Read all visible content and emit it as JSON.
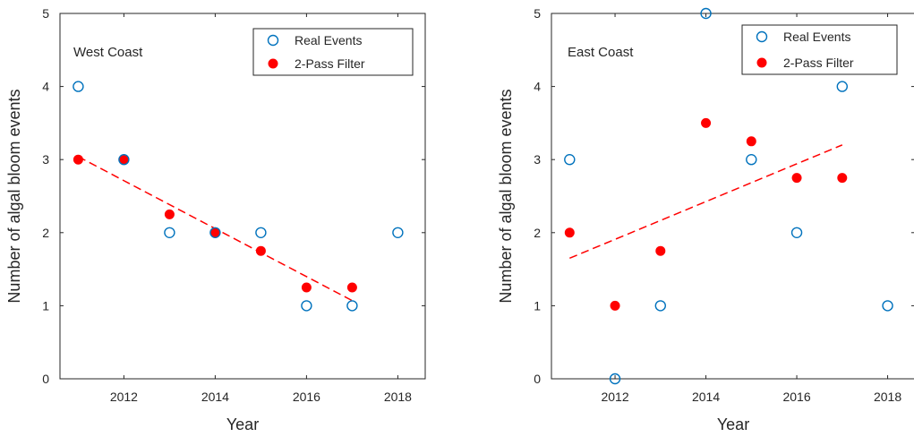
{
  "chart_data": [
    {
      "type": "scatter",
      "title": "",
      "annotation": "West Coast",
      "xlabel": "Year",
      "ylabel": "Number of algal bloom events",
      "xlim": [
        2010.6,
        2018.6
      ],
      "ylim": [
        0,
        5
      ],
      "xticks": [
        2012,
        2014,
        2016,
        2018
      ],
      "yticks": [
        0,
        1,
        2,
        3,
        4,
        5
      ],
      "legend_position": "top-right",
      "series": [
        {
          "name": "Real Events",
          "marker": "open-circle",
          "color": "#0072BD",
          "points": [
            [
              2011,
              4
            ],
            [
              2012,
              3
            ],
            [
              2013,
              2
            ],
            [
              2014,
              2
            ],
            [
              2015,
              2
            ],
            [
              2016,
              1
            ],
            [
              2017,
              1
            ],
            [
              2018,
              2
            ]
          ]
        },
        {
          "name": "2-Pass Filter",
          "marker": "filled-circle",
          "color": "#FF0000",
          "points": [
            [
              2011,
              3
            ],
            [
              2012,
              3
            ],
            [
              2013,
              2.25
            ],
            [
              2014,
              2
            ],
            [
              2015,
              1.75
            ],
            [
              2016,
              1.25
            ],
            [
              2017,
              1.25
            ]
          ]
        }
      ],
      "trendline": {
        "style": "dashed",
        "color": "#FF0000",
        "points": [
          [
            2011,
            3.04
          ],
          [
            2017,
            1.07
          ]
        ]
      }
    },
    {
      "type": "scatter",
      "title": "",
      "annotation": "East Coast",
      "xlabel": "Year",
      "ylabel": "Number of algal bloom events",
      "xlim": [
        2010.6,
        2018.6
      ],
      "ylim": [
        0,
        5
      ],
      "xticks": [
        2012,
        2014,
        2016,
        2018
      ],
      "yticks": [
        0,
        1,
        2,
        3,
        4,
        5
      ],
      "legend_position": "top-right",
      "series": [
        {
          "name": "Real Events",
          "marker": "open-circle",
          "color": "#0072BD",
          "points": [
            [
              2011,
              3
            ],
            [
              2012,
              0
            ],
            [
              2013,
              1
            ],
            [
              2014,
              5
            ],
            [
              2015,
              3
            ],
            [
              2016,
              2
            ],
            [
              2017,
              4
            ],
            [
              2018,
              1
            ]
          ]
        },
        {
          "name": "2-Pass Filter",
          "marker": "filled-circle",
          "color": "#FF0000",
          "points": [
            [
              2011,
              2
            ],
            [
              2012,
              1
            ],
            [
              2013,
              1.75
            ],
            [
              2014,
              3.5
            ],
            [
              2015,
              3.25
            ],
            [
              2016,
              2.75
            ],
            [
              2017,
              2.75
            ]
          ]
        }
      ],
      "trendline": {
        "style": "dashed",
        "color": "#FF0000",
        "points": [
          [
            2011,
            1.65
          ],
          [
            2017,
            3.2
          ]
        ]
      }
    }
  ]
}
